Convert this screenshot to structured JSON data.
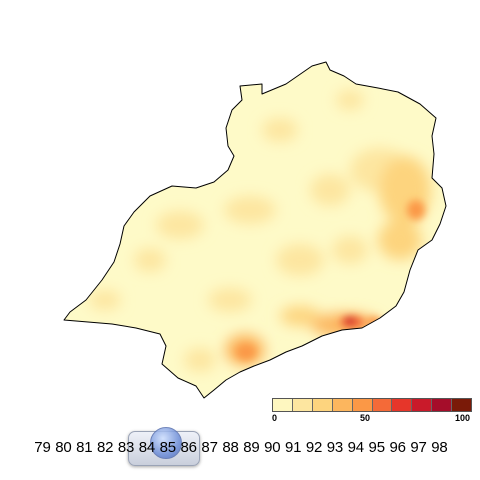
{
  "map": {
    "colors": {
      "background": "#ffffff",
      "outline": "#000000",
      "base_fill": "#fefac8"
    }
  },
  "legend": {
    "colors": [
      "#fef7c0",
      "#fde6a0",
      "#fdd47e",
      "#fcb65e",
      "#fb9846",
      "#f46a38",
      "#e6362a",
      "#c91a2a",
      "#a50d2a",
      "#7a1a08"
    ],
    "labels": {
      "min": "0",
      "mid": "50",
      "max": "100"
    }
  },
  "timeline": {
    "years": [
      "79",
      "80",
      "81",
      "82",
      "83",
      "84",
      "85",
      "86",
      "87",
      "88",
      "89",
      "90",
      "91",
      "92",
      "93",
      "94",
      "95",
      "96",
      "97",
      "98"
    ],
    "selected": "85"
  }
}
